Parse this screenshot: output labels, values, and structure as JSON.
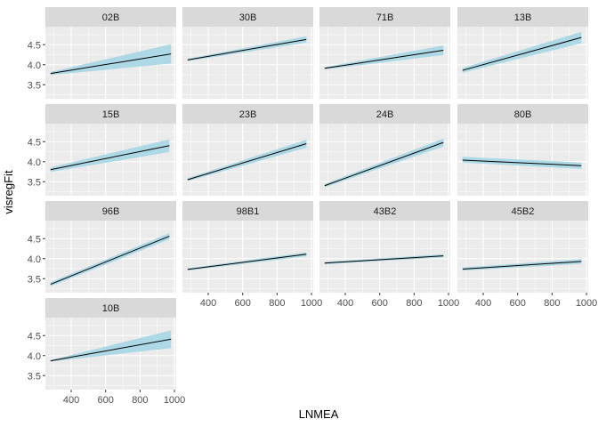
{
  "chart_data": {
    "type": "line",
    "xlabel": "LNMEA",
    "ylabel": "visregFit",
    "xlim": [
      250,
      1010
    ],
    "ylim": [
      3.15,
      4.95
    ],
    "x_ticks": [
      400,
      600,
      800,
      1000
    ],
    "y_ticks": [
      3.5,
      4.0,
      4.5
    ],
    "grid": true,
    "colors": {
      "panel_bg": "#ebebeb",
      "strip_bg": "#d9d9d9",
      "grid_major": "#ffffff",
      "band": "#add8e6",
      "line": "#000000"
    },
    "panels": [
      {
        "name": "02B",
        "x": [
          280,
          980
        ],
        "y": [
          3.78,
          4.27
        ],
        "band_lower": [
          3.74,
          4.03
        ],
        "band_upper": [
          3.82,
          4.51
        ]
      },
      {
        "name": "30B",
        "x": [
          280,
          970
        ],
        "y": [
          4.12,
          4.63
        ],
        "band_lower": [
          4.09,
          4.55
        ],
        "band_upper": [
          4.15,
          4.71
        ]
      },
      {
        "name": "71B",
        "x": [
          280,
          970
        ],
        "y": [
          3.91,
          4.36
        ],
        "band_lower": [
          3.88,
          4.24
        ],
        "band_upper": [
          3.94,
          4.48
        ]
      },
      {
        "name": "13B",
        "x": [
          280,
          970
        ],
        "y": [
          3.86,
          4.68
        ],
        "band_lower": [
          3.8,
          4.54
        ],
        "band_upper": [
          3.92,
          4.82
        ]
      },
      {
        "name": "15B",
        "x": [
          280,
          970
        ],
        "y": [
          3.8,
          4.4
        ],
        "band_lower": [
          3.74,
          4.24
        ],
        "band_upper": [
          3.86,
          4.56
        ]
      },
      {
        "name": "23B",
        "x": [
          280,
          970
        ],
        "y": [
          3.55,
          4.45
        ],
        "band_lower": [
          3.51,
          4.35
        ],
        "band_upper": [
          3.59,
          4.55
        ]
      },
      {
        "name": "24B",
        "x": [
          280,
          970
        ],
        "y": [
          3.4,
          4.48
        ],
        "band_lower": [
          3.36,
          4.38
        ],
        "band_upper": [
          3.44,
          4.58
        ]
      },
      {
        "name": "80B",
        "x": [
          280,
          970
        ],
        "y": [
          4.04,
          3.9
        ],
        "band_lower": [
          3.98,
          3.82
        ],
        "band_upper": [
          4.12,
          3.98
        ]
      },
      {
        "name": "96B",
        "x": [
          280,
          970
        ],
        "y": [
          3.36,
          4.56
        ],
        "band_lower": [
          3.31,
          4.48
        ],
        "band_upper": [
          3.41,
          4.64
        ]
      },
      {
        "name": "98B1",
        "x": [
          280,
          970
        ],
        "y": [
          3.73,
          4.11
        ],
        "band_lower": [
          3.7,
          4.06
        ],
        "band_upper": [
          3.76,
          4.16
        ]
      },
      {
        "name": "43B2",
        "x": [
          280,
          970
        ],
        "y": [
          3.89,
          4.07
        ],
        "band_lower": [
          3.86,
          4.03
        ],
        "band_upper": [
          3.92,
          4.11
        ]
      },
      {
        "name": "45B2",
        "x": [
          280,
          970
        ],
        "y": [
          3.74,
          3.93
        ],
        "band_lower": [
          3.7,
          3.87
        ],
        "band_upper": [
          3.78,
          3.99
        ]
      },
      {
        "name": "10B",
        "x": [
          280,
          980
        ],
        "y": [
          3.87,
          4.41
        ],
        "band_lower": [
          3.85,
          4.19
        ],
        "band_upper": [
          3.89,
          4.63
        ]
      }
    ]
  }
}
